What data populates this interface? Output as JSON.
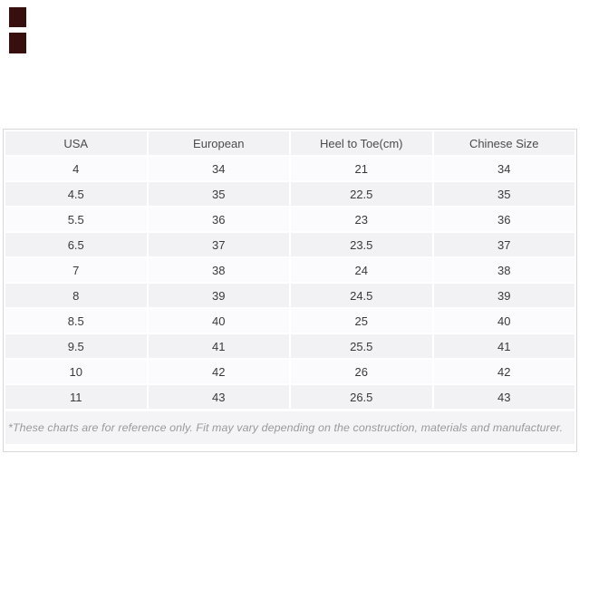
{
  "size_chart": {
    "columns": [
      "USA",
      "European",
      "Heel to Toe(cm)",
      "Chinese Size"
    ],
    "rows": [
      [
        "4",
        "34",
        "21",
        "34"
      ],
      [
        "4.5",
        "35",
        "22.5",
        "35"
      ],
      [
        "5.5",
        "36",
        "23",
        "36"
      ],
      [
        "6.5",
        "37",
        "23.5",
        "37"
      ],
      [
        "7",
        "38",
        "24",
        "38"
      ],
      [
        "8",
        "39",
        "24.5",
        "39"
      ],
      [
        "8.5",
        "40",
        "25",
        "40"
      ],
      [
        "9.5",
        "41",
        "25.5",
        "41"
      ],
      [
        "10",
        "42",
        "26",
        "42"
      ],
      [
        "11",
        "43",
        "26.5",
        "43"
      ]
    ],
    "footnote": "*These charts are for reference only. Fit may vary depending on the construction, materials and manufacturer."
  },
  "colors": {
    "row_stripe": "#f2f1f3",
    "row_alt": "#fbfafc",
    "box_border": "#d8d8dc",
    "header_text": "#4b4b4d",
    "cell_text": "#3a3a3c",
    "footnote_text": "#9a989c",
    "decor_square": "#380f0f",
    "background": "#ffffff"
  }
}
